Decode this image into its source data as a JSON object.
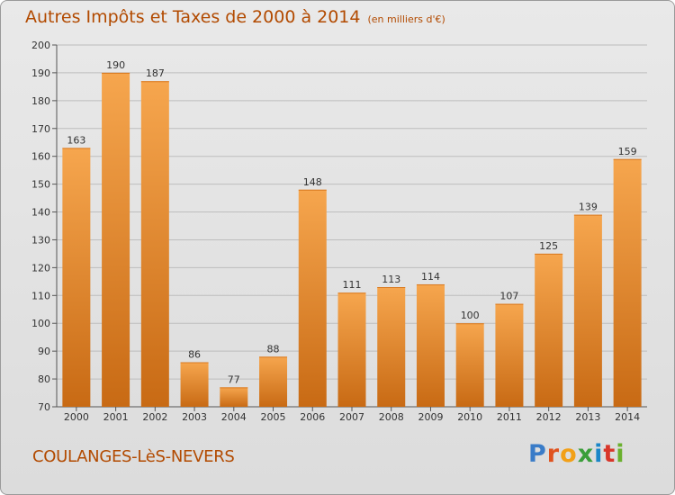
{
  "header": {
    "title": "Autres Impôts et Taxes de 2000 à 2014",
    "unit": "(en milliers d'€)"
  },
  "footer": {
    "place": "COULANGES-LèS-NEVERS",
    "logo_letters": [
      "P",
      "r",
      "o",
      "x",
      "i",
      "t",
      "i"
    ],
    "logo_colors": [
      "#3a7cc8",
      "#e0521e",
      "#f2a018",
      "#3a9e3a",
      "#1a86c8",
      "#d8362a",
      "#6ab02e"
    ]
  },
  "colors": {
    "bar_light": "#f6a64e",
    "bar_dark": "#c86a14",
    "text_accent": "#b24a00",
    "grid": "#bdbdbd"
  },
  "chart_data": {
    "type": "bar",
    "title": "Autres Impôts et Taxes de 2000 à 2014",
    "subtitle": "(en milliers d'€)",
    "xlabel": "",
    "ylabel": "",
    "categories": [
      "2000",
      "2001",
      "2002",
      "2003",
      "2004",
      "2005",
      "2006",
      "2007",
      "2008",
      "2009",
      "2010",
      "2011",
      "2012",
      "2013",
      "2014"
    ],
    "values": [
      163,
      190,
      187,
      86,
      77,
      88,
      148,
      111,
      113,
      114,
      100,
      107,
      125,
      139,
      159
    ],
    "ylim": [
      70,
      200
    ],
    "yticks": [
      70,
      80,
      90,
      100,
      110,
      120,
      130,
      140,
      150,
      160,
      170,
      180,
      190,
      200
    ],
    "grid": true,
    "legend": "none",
    "data_labels": true
  }
}
